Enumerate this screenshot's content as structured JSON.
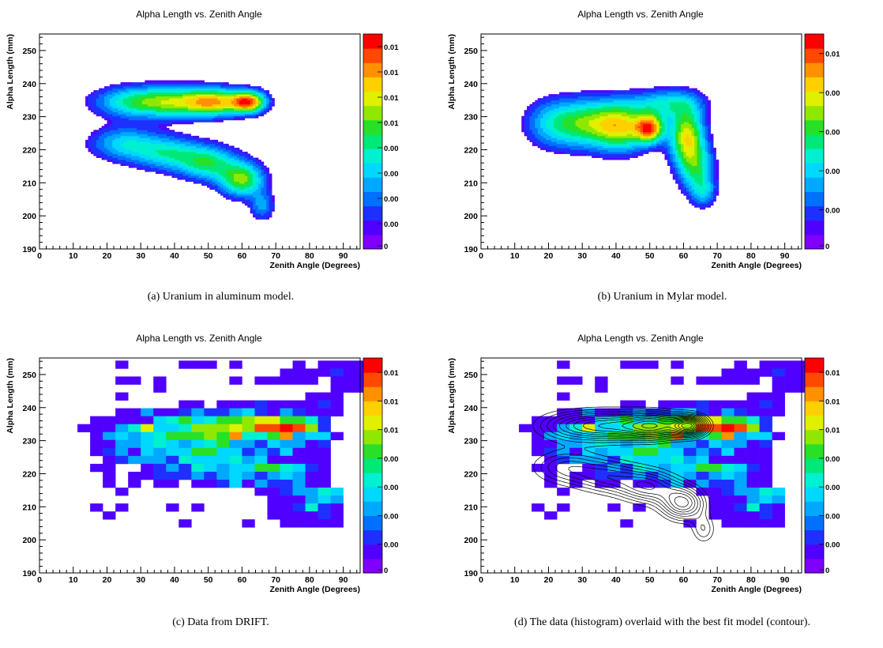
{
  "chart_data": [
    {
      "id": "a",
      "type": "heatmap",
      "title": "Alpha Length vs. Zenith Angle",
      "xlabel": "Zenith Angle (Degrees)",
      "ylabel": "Alpha Length (mm)",
      "xlim": [
        0,
        95
      ],
      "ylim": [
        190,
        255
      ],
      "xticks": [
        0,
        10,
        20,
        30,
        40,
        50,
        60,
        70,
        80,
        90
      ],
      "yticks": [
        190,
        200,
        210,
        220,
        230,
        240,
        250
      ],
      "zticks": [
        "0.01",
        "0.01",
        "0.01",
        "0.01",
        "0.00",
        "0.00",
        "0.00",
        "0.00",
        "0"
      ],
      "style": "filled-contour",
      "caption": "(a) Uranium in aluminum model.",
      "blobs": [
        {
          "x": 27,
          "y": 234.5,
          "sx": 8,
          "sy": 3.2,
          "a": 0.45
        },
        {
          "x": 40,
          "y": 234.5,
          "sx": 8,
          "sy": 3.2,
          "a": 0.6
        },
        {
          "x": 52,
          "y": 234.5,
          "sx": 6,
          "sy": 2.8,
          "a": 0.8
        },
        {
          "x": 62,
          "y": 234.5,
          "sx": 3.5,
          "sy": 2.2,
          "a": 1.0
        },
        {
          "x": 25,
          "y": 222,
          "sx": 7,
          "sy": 3.5,
          "a": 0.4
        },
        {
          "x": 38,
          "y": 219,
          "sx": 7,
          "sy": 3.5,
          "a": 0.45
        },
        {
          "x": 50,
          "y": 216,
          "sx": 6,
          "sy": 3.5,
          "a": 0.55
        },
        {
          "x": 60,
          "y": 211,
          "sx": 4.5,
          "sy": 3.5,
          "a": 0.7
        },
        {
          "x": 66,
          "y": 203,
          "sx": 2.5,
          "sy": 3,
          "a": 0.3
        }
      ]
    },
    {
      "id": "b",
      "type": "heatmap",
      "title": "Alpha Length vs. Zenith Angle",
      "xlabel": "Zenith Angle (Degrees)",
      "ylabel": "Alpha Length (mm)",
      "xlim": [
        0,
        95
      ],
      "ylim": [
        190,
        255
      ],
      "xticks": [
        0,
        10,
        20,
        30,
        40,
        50,
        60,
        70,
        80,
        90
      ],
      "yticks": [
        190,
        200,
        210,
        220,
        230,
        240,
        250
      ],
      "zticks": [
        "0.01",
        "0.00",
        "0.00",
        "0.00",
        "0.00",
        "0"
      ],
      "style": "filled-contour",
      "caption": "(b) Uranium in Mylar model.",
      "blobs": [
        {
          "x": 22,
          "y": 228,
          "sx": 6,
          "sy": 5,
          "a": 0.45
        },
        {
          "x": 33,
          "y": 228,
          "sx": 6,
          "sy": 5,
          "a": 0.6
        },
        {
          "x": 42,
          "y": 227,
          "sx": 5,
          "sy": 5,
          "a": 0.72
        },
        {
          "x": 50,
          "y": 226.5,
          "sx": 3,
          "sy": 3,
          "a": 1.0
        },
        {
          "x": 61,
          "y": 224,
          "sx": 3.5,
          "sy": 6,
          "a": 0.85
        },
        {
          "x": 64,
          "y": 214,
          "sx": 3.5,
          "sy": 5,
          "a": 0.5
        },
        {
          "x": 66,
          "y": 207,
          "sx": 2.5,
          "sy": 3,
          "a": 0.3
        },
        {
          "x": 55,
          "y": 234,
          "sx": 7,
          "sy": 3,
          "a": 0.45
        }
      ]
    },
    {
      "id": "c",
      "type": "heatmap",
      "title": "Alpha Length vs. Zenith Angle",
      "xlabel": "Zenith Angle (Degrees)",
      "ylabel": "Alpha Length (mm)",
      "xlim": [
        0,
        95
      ],
      "ylim": [
        190,
        255
      ],
      "xticks": [
        0,
        10,
        20,
        30,
        40,
        50,
        60,
        70,
        80,
        90
      ],
      "yticks": [
        190,
        200,
        210,
        220,
        230,
        240,
        250
      ],
      "zticks": [
        "0.01",
        "0.01",
        "0.01",
        "0.00",
        "0.00",
        "0.00",
        "0.00",
        "0"
      ],
      "style": "histogram",
      "caption": "(c) Data from DRIFT.",
      "cell_width": 3.75,
      "cell_height": 2.4,
      "rows": [
        {
          "y": 253,
          "x0": 22.5,
          "v": [
            1,
            0,
            0,
            0,
            0,
            1,
            1,
            1,
            0,
            1,
            0,
            0,
            0,
            0,
            1,
            0,
            1,
            1,
            1,
            1
          ]
        },
        {
          "y": 250.6,
          "x0": 22.5,
          "v": [
            0,
            0,
            0,
            0,
            0,
            0,
            0,
            0,
            0,
            0,
            0,
            0,
            0,
            1,
            1,
            1,
            1,
            2,
            1,
            1
          ]
        },
        {
          "y": 248.2,
          "x0": 22.5,
          "v": [
            1,
            1,
            0,
            1,
            0,
            0,
            0,
            0,
            0,
            1,
            0,
            1,
            1,
            1,
            1,
            1,
            0,
            1,
            1,
            1
          ]
        },
        {
          "y": 245.8,
          "x0": 22.5,
          "v": [
            0,
            0,
            0,
            1,
            0,
            0,
            0,
            0,
            0,
            0,
            0,
            0,
            0,
            0,
            0,
            0,
            0,
            1,
            1,
            1
          ]
        },
        {
          "y": 243.4,
          "x0": 22.5,
          "v": [
            1,
            0,
            0,
            0,
            0,
            0,
            0,
            0,
            0,
            0,
            0,
            0,
            0,
            0,
            0,
            1,
            1,
            1,
            0,
            0
          ]
        },
        {
          "y": 241,
          "x0": 22.5,
          "v": [
            0,
            0,
            0,
            0,
            0,
            1,
            1,
            0,
            1,
            1,
            1,
            2,
            1,
            1,
            1,
            1,
            2,
            1,
            0,
            0
          ]
        },
        {
          "y": 238.6,
          "x0": 15,
          "v": [
            0,
            0,
            1,
            1,
            3,
            1,
            1,
            2,
            3,
            2,
            2,
            3,
            4,
            2,
            1,
            3,
            2,
            1,
            1,
            1
          ]
        },
        {
          "y": 236.2,
          "x0": 15,
          "v": [
            1,
            1,
            1,
            1,
            1,
            4,
            5,
            6,
            4,
            5,
            6,
            6,
            7,
            8,
            8,
            6,
            6,
            5,
            2,
            0
          ]
        },
        {
          "y": 233.8,
          "x0": 11.25,
          "v": [
            1,
            1,
            1,
            3,
            5,
            8,
            4,
            4,
            5,
            7,
            7,
            7,
            8,
            7,
            10,
            10,
            11,
            10,
            7,
            2,
            0
          ]
        },
        {
          "y": 231.4,
          "x0": 11.25,
          "v": [
            0,
            1,
            3,
            4,
            3,
            4,
            5,
            6,
            6,
            6,
            7,
            6,
            9,
            5,
            5,
            6,
            9,
            3,
            4,
            4,
            1
          ]
        },
        {
          "y": 229,
          "x0": 15,
          "v": [
            1,
            1,
            3,
            3,
            4,
            5,
            4,
            3,
            4,
            5,
            6,
            3,
            3,
            2,
            4,
            3,
            3,
            1,
            2
          ]
        },
        {
          "y": 226.6,
          "x0": 15,
          "v": [
            1,
            2,
            3,
            1,
            4,
            3,
            4,
            4,
            6,
            6,
            4,
            4,
            2,
            3,
            2,
            4,
            1,
            1,
            1
          ]
        },
        {
          "y": 224.2,
          "x0": 18.75,
          "v": [
            1,
            2,
            3,
            3,
            3,
            2,
            5,
            4,
            4,
            4,
            5,
            3,
            4,
            1,
            1,
            1,
            1,
            1
          ]
        },
        {
          "y": 221.8,
          "x0": 15,
          "v": [
            1,
            1,
            0,
            0,
            1,
            2,
            3,
            2,
            5,
            4,
            3,
            4,
            4,
            6,
            6,
            5,
            4,
            2,
            1
          ]
        },
        {
          "y": 219.4,
          "x0": 18.75,
          "v": [
            1,
            0,
            1,
            1,
            2,
            2,
            2,
            3,
            2,
            3,
            4,
            3,
            2,
            3,
            4,
            3,
            1,
            1
          ]
        },
        {
          "y": 217,
          "x0": 18.75,
          "v": [
            1,
            0,
            1,
            0,
            1,
            1,
            0,
            1,
            1,
            2,
            4,
            1,
            3,
            2,
            2,
            3,
            1,
            1
          ]
        },
        {
          "y": 214.6,
          "x0": 22.5,
          "v": [
            1,
            0,
            0,
            0,
            0,
            0,
            0,
            0,
            0,
            0,
            0,
            1,
            1,
            2,
            3,
            3,
            5,
            4
          ]
        },
        {
          "y": 212.2,
          "x0": 18.75,
          "v": [
            0,
            0,
            0,
            0,
            0,
            0,
            0,
            0,
            0,
            0,
            0,
            0,
            0,
            1,
            1,
            1,
            3,
            4,
            3
          ]
        },
        {
          "y": 209.8,
          "x0": 15,
          "v": [
            1,
            0,
            1,
            0,
            0,
            0,
            1,
            0,
            1,
            0,
            0,
            0,
            0,
            0,
            1,
            1,
            2,
            5,
            2,
            1
          ]
        },
        {
          "y": 207.4,
          "x0": 18.75,
          "v": [
            1,
            0,
            0,
            0,
            0,
            0,
            0,
            0,
            0,
            0,
            0,
            0,
            0,
            1,
            1,
            1,
            1,
            2,
            1
          ]
        },
        {
          "y": 205,
          "x0": 41.25,
          "v": [
            1,
            0,
            0,
            0,
            0,
            1,
            0,
            0,
            1,
            1,
            1,
            1,
            1
          ]
        }
      ]
    },
    {
      "id": "d",
      "type": "heatmap",
      "title": "Alpha Length vs. Zenith Angle",
      "xlabel": "Zenith Angle (Degrees)",
      "ylabel": "Alpha Length (mm)",
      "xlim": [
        0,
        95
      ],
      "ylim": [
        190,
        255
      ],
      "xticks": [
        0,
        10,
        20,
        30,
        40,
        50,
        60,
        70,
        80,
        90
      ],
      "yticks": [
        190,
        200,
        210,
        220,
        230,
        240,
        250
      ],
      "zticks": [
        "0.01",
        "0.01",
        "0.01",
        "0.00",
        "0.00",
        "0.00",
        "0.00",
        "0"
      ],
      "style": "histogram+contour",
      "caption": "(d) The data (histogram) overlaid with the best fit model (contour).",
      "same_data_as": "c",
      "contour_model": "a"
    }
  ]
}
